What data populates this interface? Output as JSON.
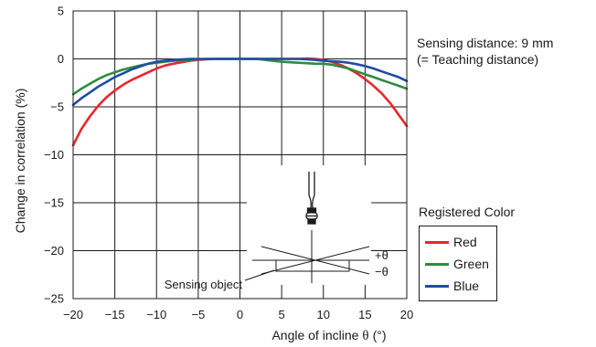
{
  "chart_data": {
    "type": "line",
    "xlabel": "Angle of incline",
    "xlabel_symbol": "θ",
    "xlabel_unit": "(°)",
    "ylabel": "Change in correlation (%)",
    "xlim": [
      -20,
      20
    ],
    "ylim": [
      -25,
      5
    ],
    "x_ticks": [
      "−20",
      "−15",
      "−10",
      "−5",
      "0",
      "5",
      "10",
      "15",
      "20"
    ],
    "y_ticks": [
      "5",
      "0",
      "−5",
      "−10",
      "−15",
      "−20",
      "−25"
    ],
    "grid": true,
    "series": [
      {
        "name": "Red",
        "color": "#e8262d",
        "x": [
          -20,
          -19,
          -18,
          -17,
          -16,
          -15,
          -14,
          -13,
          -12,
          -11,
          -10,
          -9,
          -8,
          -7,
          -6,
          -5,
          -4,
          -3,
          -2,
          -1,
          0,
          1,
          2,
          3,
          4,
          5,
          6,
          7,
          8,
          9,
          10,
          11,
          12,
          13,
          14,
          15,
          16,
          17,
          18,
          19,
          20
        ],
        "values": [
          -9.0,
          -7.3,
          -6.0,
          -4.9,
          -4.0,
          -3.3,
          -2.7,
          -2.2,
          -1.8,
          -1.4,
          -1.0,
          -0.7,
          -0.5,
          -0.35,
          -0.2,
          -0.1,
          -0.05,
          0,
          0,
          0,
          0,
          0,
          0,
          0,
          0,
          0,
          0,
          0,
          0.05,
          0,
          -0.1,
          -0.3,
          -0.6,
          -1.0,
          -1.5,
          -2.1,
          -2.8,
          -3.6,
          -4.6,
          -5.8,
          -7.0
        ]
      },
      {
        "name": "Green",
        "color": "#2e8b3e",
        "x": [
          -20,
          -19,
          -18,
          -17,
          -16,
          -15,
          -14,
          -13,
          -12,
          -11,
          -10,
          -9,
          -8,
          -7,
          -6,
          -5,
          -4,
          -3,
          -2,
          -1,
          0,
          1,
          2,
          3,
          4,
          5,
          6,
          7,
          8,
          9,
          10,
          11,
          12,
          13,
          14,
          15,
          16,
          17,
          18,
          19,
          20
        ],
        "values": [
          -3.7,
          -3.1,
          -2.6,
          -2.1,
          -1.7,
          -1.4,
          -1.1,
          -0.9,
          -0.7,
          -0.5,
          -0.4,
          -0.3,
          -0.2,
          -0.15,
          -0.1,
          -0.05,
          0,
          0,
          0,
          0,
          0,
          0,
          0,
          -0.1,
          -0.2,
          -0.3,
          -0.35,
          -0.4,
          -0.45,
          -0.5,
          -0.5,
          -0.6,
          -0.8,
          -1.0,
          -1.3,
          -1.6,
          -1.9,
          -2.2,
          -2.5,
          -2.8,
          -3.1
        ]
      },
      {
        "name": "Blue",
        "color": "#1f4ea3",
        "x": [
          -20,
          -19,
          -18,
          -17,
          -16,
          -15,
          -14,
          -13,
          -12,
          -11,
          -10,
          -9,
          -8,
          -7,
          -6,
          -5,
          -4,
          -3,
          -2,
          -1,
          0,
          1,
          2,
          3,
          4,
          5,
          6,
          7,
          8,
          9,
          10,
          11,
          12,
          13,
          14,
          15,
          16,
          17,
          18,
          19,
          20
        ],
        "values": [
          -4.8,
          -4.1,
          -3.5,
          -2.9,
          -2.4,
          -1.9,
          -1.5,
          -1.1,
          -0.8,
          -0.5,
          -0.3,
          -0.2,
          -0.1,
          -0.05,
          0,
          0,
          0,
          0,
          0,
          0,
          0,
          0,
          0,
          0,
          0,
          0,
          0,
          0,
          -0.05,
          -0.1,
          -0.2,
          -0.25,
          -0.3,
          -0.4,
          -0.55,
          -0.75,
          -1.0,
          -1.3,
          -1.6,
          -1.9,
          -2.3
        ]
      }
    ]
  },
  "annotation": {
    "line1": "Sensing distance: 9 mm",
    "line2": "(= Teaching distance)"
  },
  "legend": {
    "title": "Registered Color",
    "items": [
      {
        "label": "Red",
        "color": "#e8262d"
      },
      {
        "label": "Green",
        "color": "#2e8b3e"
      },
      {
        "label": "Blue",
        "color": "#1f4ea3"
      }
    ]
  },
  "inset": {
    "object_label": "Sensing object",
    "plus_label": "+θ",
    "minus_label": "−θ"
  }
}
